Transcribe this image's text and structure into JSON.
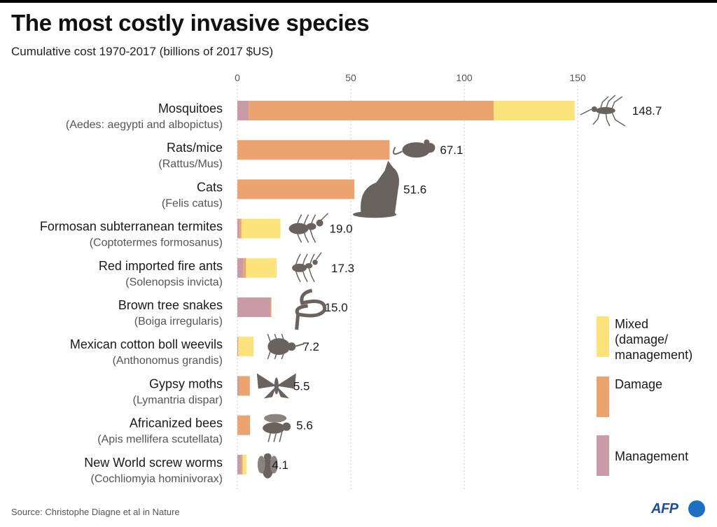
{
  "header": {
    "title": "The most costly invasive species",
    "subtitle": "Cumulative cost 1970-2017 (billions of 2017 $US)"
  },
  "chart_data": {
    "type": "bar",
    "orientation": "horizontal",
    "stacked": true,
    "title": "The most costly invasive species",
    "subtitle": "Cumulative cost 1970-2017 (billions of 2017 $US)",
    "xlabel": "",
    "ylabel": "",
    "xlim": [
      0,
      150
    ],
    "x_ticks": [
      0,
      50,
      100,
      150
    ],
    "grid": true,
    "legend_position": "right",
    "categories": [
      {
        "name": "Mosquitoes",
        "latin": "(Aedes: aegypti and albopictus)",
        "total": "148.7",
        "icon": "mosquito-icon"
      },
      {
        "name": "Rats/mice",
        "latin": "(Rattus/Mus)",
        "total": "67.1",
        "icon": "rat-icon"
      },
      {
        "name": "Cats",
        "latin": "(Felis catus)",
        "total": "51.6",
        "icon": "cat-icon"
      },
      {
        "name": "Formosan subterranean termites",
        "latin": "(Coptotermes formosanus)",
        "total": "19.0",
        "icon": "termite-icon"
      },
      {
        "name": "Red imported fire ants",
        "latin": "(Solenopsis invicta)",
        "total": "17.3",
        "icon": "fire-ant-icon"
      },
      {
        "name": "Brown tree snakes",
        "latin": "(Boiga irregularis)",
        "total": "15.0",
        "icon": "snake-icon"
      },
      {
        "name": "Mexican cotton boll weevils",
        "latin": "(Anthonomus grandis)",
        "total": "7.2",
        "icon": "weevil-icon"
      },
      {
        "name": "Gypsy moths",
        "latin": "(Lymantria dispar)",
        "total": "5.5",
        "icon": "moth-icon"
      },
      {
        "name": "Africanized bees",
        "latin": "(Apis mellifera scutellata)",
        "total": "5.6",
        "icon": "bee-icon"
      },
      {
        "name": "New World screw worms",
        "latin": "(Cochliomyia hominivorax)",
        "total": "4.1",
        "icon": "fly-icon"
      }
    ],
    "series": [
      {
        "name": "Management",
        "color": "#c99ba7",
        "values": [
          5,
          0,
          0,
          1,
          2.5,
          14.5,
          0.4,
          0.8,
          0,
          1.8
        ]
      },
      {
        "name": "Damage",
        "color": "#eba36f",
        "values": [
          108,
          67.1,
          51.6,
          0.8,
          1.3,
          0.5,
          0,
          4.7,
          5.6,
          0.5
        ]
      },
      {
        "name": "Mixed\n(damage/\nmanagement)",
        "color": "#fde37c",
        "values": [
          35.7,
          0,
          0,
          17.2,
          13.5,
          0,
          6.8,
          0,
          0,
          1.8
        ]
      }
    ]
  },
  "legend": [
    {
      "label": "Mixed\n(damage/\nmanagement)",
      "color": "#fde37c"
    },
    {
      "label": "Damage",
      "color": "#eba36f"
    },
    {
      "label": "Management",
      "color": "#c99ba7"
    }
  ],
  "footer": {
    "source": "Source: Christophe Diagne et al in Nature",
    "logo_text": "AFP"
  }
}
